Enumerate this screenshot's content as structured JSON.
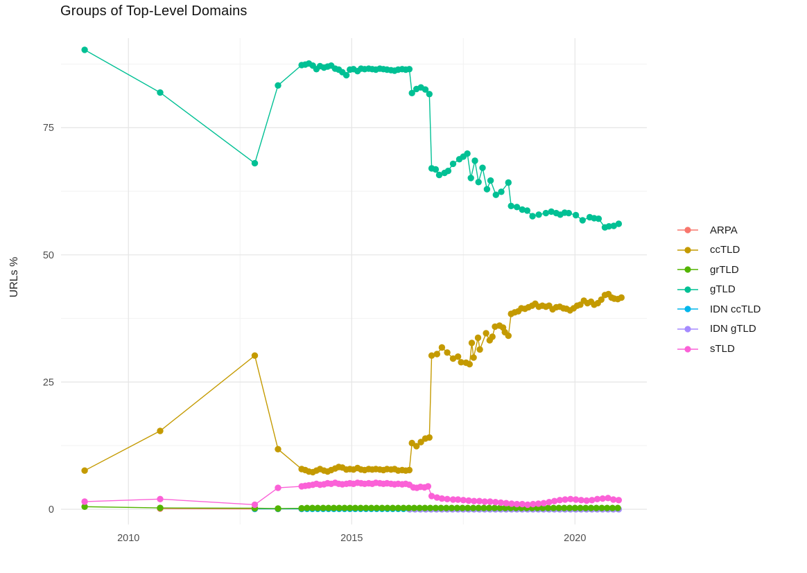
{
  "chart_data": {
    "type": "line",
    "title": "Groups of Top-Level Domains",
    "ylabel": "URLs %",
    "xlabel": "",
    "grid": "major+minor",
    "legend_position": "right",
    "x_range": [
      2008.49,
      2021.61
    ],
    "y_range": [
      -3.0,
      92.6
    ],
    "x_ticks": {
      "values": [
        2010,
        2015,
        2020
      ],
      "labels": [
        "2010",
        "2015",
        "2020"
      ]
    },
    "x_minor": [
      2012.5,
      2017.5
    ],
    "y_ticks": {
      "values": [
        0,
        25,
        50,
        75
      ],
      "labels": [
        "0",
        "25",
        "50",
        "75"
      ]
    },
    "y_minor": [
      12.5,
      37.5,
      62.5,
      87.5
    ],
    "colors": {
      "grid_major": "#e5e5e5",
      "grid_minor": "#f2f2f2",
      "tick_label": "#4d4d4d",
      "title": "#111111"
    },
    "draw_order": [
      "ARPA",
      "IDN ccTLD",
      "IDN gTLD",
      "grTLD",
      "gTLD",
      "ccTLD",
      "sTLD"
    ],
    "series": [
      {
        "name": "ARPA",
        "color": "#F8766D",
        "points": [
          [
            2010.71,
            0.12
          ],
          [
            2012.83,
            0.07
          ],
          [
            2013.35,
            0.06
          ],
          [
            2013.88,
            0.06
          ]
        ]
      },
      {
        "name": "ccTLD",
        "color": "#C49A00",
        "points": [
          [
            2009.02,
            7.6
          ],
          [
            2010.71,
            15.4
          ],
          [
            2012.83,
            30.2
          ],
          [
            2013.35,
            11.8
          ],
          [
            2013.88,
            7.9
          ],
          [
            2013.96,
            7.7
          ],
          [
            2014.04,
            7.4
          ],
          [
            2014.13,
            7.3
          ],
          [
            2014.21,
            7.6
          ],
          [
            2014.29,
            7.9
          ],
          [
            2014.38,
            7.6
          ],
          [
            2014.46,
            7.4
          ],
          [
            2014.54,
            7.7
          ],
          [
            2014.63,
            8.0
          ],
          [
            2014.71,
            8.3
          ],
          [
            2014.79,
            8.2
          ],
          [
            2014.88,
            7.8
          ],
          [
            2014.96,
            7.9
          ],
          [
            2015.04,
            7.8
          ],
          [
            2015.13,
            8.1
          ],
          [
            2015.21,
            7.8
          ],
          [
            2015.29,
            7.7
          ],
          [
            2015.38,
            7.9
          ],
          [
            2015.46,
            7.8
          ],
          [
            2015.54,
            7.9
          ],
          [
            2015.63,
            7.8
          ],
          [
            2015.71,
            7.7
          ],
          [
            2015.79,
            7.9
          ],
          [
            2015.88,
            7.8
          ],
          [
            2015.96,
            7.9
          ],
          [
            2016.04,
            7.6
          ],
          [
            2016.13,
            7.7
          ],
          [
            2016.21,
            7.6
          ],
          [
            2016.29,
            7.7
          ],
          [
            2016.35,
            13.0
          ],
          [
            2016.45,
            12.4
          ],
          [
            2016.55,
            13.2
          ],
          [
            2016.65,
            13.9
          ],
          [
            2016.74,
            14.1
          ],
          [
            2016.79,
            30.2
          ],
          [
            2016.91,
            30.5
          ],
          [
            2017.02,
            31.8
          ],
          [
            2017.14,
            30.8
          ],
          [
            2017.27,
            29.6
          ],
          [
            2017.38,
            30.0
          ],
          [
            2017.45,
            28.9
          ],
          [
            2017.56,
            28.8
          ],
          [
            2017.64,
            28.5
          ],
          [
            2017.69,
            32.7
          ],
          [
            2017.73,
            29.8
          ],
          [
            2017.83,
            33.7
          ],
          [
            2017.87,
            31.4
          ],
          [
            2018.01,
            34.6
          ],
          [
            2018.09,
            33.2
          ],
          [
            2018.15,
            33.9
          ],
          [
            2018.21,
            35.9
          ],
          [
            2018.31,
            36.1
          ],
          [
            2018.39,
            35.7
          ],
          [
            2018.43,
            34.8
          ],
          [
            2018.51,
            34.1
          ],
          [
            2018.57,
            38.4
          ],
          [
            2018.65,
            38.7
          ],
          [
            2018.73,
            38.9
          ],
          [
            2018.8,
            39.5
          ],
          [
            2018.88,
            39.4
          ],
          [
            2018.96,
            39.7
          ],
          [
            2019.04,
            40.0
          ],
          [
            2019.11,
            40.4
          ],
          [
            2019.19,
            39.8
          ],
          [
            2019.27,
            40.0
          ],
          [
            2019.35,
            39.8
          ],
          [
            2019.42,
            40.0
          ],
          [
            2019.5,
            39.3
          ],
          [
            2019.58,
            39.7
          ],
          [
            2019.66,
            39.8
          ],
          [
            2019.74,
            39.5
          ],
          [
            2019.81,
            39.4
          ],
          [
            2019.89,
            39.1
          ],
          [
            2019.97,
            39.5
          ],
          [
            2020.05,
            40.0
          ],
          [
            2020.12,
            40.2
          ],
          [
            2020.2,
            41.0
          ],
          [
            2020.28,
            40.5
          ],
          [
            2020.36,
            40.8
          ],
          [
            2020.43,
            40.2
          ],
          [
            2020.51,
            40.5
          ],
          [
            2020.59,
            41.2
          ],
          [
            2020.67,
            42.1
          ],
          [
            2020.75,
            42.3
          ],
          [
            2020.82,
            41.6
          ],
          [
            2020.88,
            41.4
          ],
          [
            2020.96,
            41.3
          ],
          [
            2021.04,
            41.6
          ]
        ]
      },
      {
        "name": "grTLD",
        "color": "#53B400",
        "points": [
          [
            2009.02,
            0.5
          ],
          [
            2010.71,
            0.25
          ],
          [
            2012.83,
            0.2
          ],
          [
            2013.35,
            0.15
          ],
          [
            2013.88,
            0.18
          ]
        ],
        "flat": {
          "x_start": 2014.0,
          "x_end": 2020.98,
          "x_step": 0.12,
          "y": 0.24
        }
      },
      {
        "name": "gTLD",
        "color": "#00C094",
        "points": [
          [
            2009.02,
            90.3
          ],
          [
            2010.71,
            81.9
          ],
          [
            2012.83,
            68.0
          ],
          [
            2013.35,
            83.3
          ],
          [
            2013.88,
            87.3
          ],
          [
            2013.96,
            87.4
          ],
          [
            2014.04,
            87.6
          ],
          [
            2014.13,
            87.2
          ],
          [
            2014.21,
            86.5
          ],
          [
            2014.29,
            87.1
          ],
          [
            2014.38,
            86.8
          ],
          [
            2014.46,
            87.0
          ],
          [
            2014.54,
            87.2
          ],
          [
            2014.63,
            86.6
          ],
          [
            2014.71,
            86.4
          ],
          [
            2014.79,
            85.9
          ],
          [
            2014.88,
            85.3
          ],
          [
            2014.96,
            86.4
          ],
          [
            2015.04,
            86.5
          ],
          [
            2015.13,
            86.1
          ],
          [
            2015.21,
            86.6
          ],
          [
            2015.29,
            86.5
          ],
          [
            2015.38,
            86.6
          ],
          [
            2015.46,
            86.5
          ],
          [
            2015.54,
            86.4
          ],
          [
            2015.63,
            86.6
          ],
          [
            2015.71,
            86.5
          ],
          [
            2015.79,
            86.4
          ],
          [
            2015.88,
            86.3
          ],
          [
            2015.96,
            86.2
          ],
          [
            2016.04,
            86.4
          ],
          [
            2016.13,
            86.5
          ],
          [
            2016.21,
            86.4
          ],
          [
            2016.29,
            86.5
          ],
          [
            2016.35,
            81.8
          ],
          [
            2016.45,
            82.6
          ],
          [
            2016.55,
            82.9
          ],
          [
            2016.65,
            82.5
          ],
          [
            2016.74,
            81.6
          ],
          [
            2016.79,
            67.0
          ],
          [
            2016.88,
            66.8
          ],
          [
            2016.96,
            65.7
          ],
          [
            2017.08,
            66.1
          ],
          [
            2017.16,
            66.5
          ],
          [
            2017.27,
            67.9
          ],
          [
            2017.41,
            68.8
          ],
          [
            2017.5,
            69.3
          ],
          [
            2017.59,
            69.9
          ],
          [
            2017.67,
            65.1
          ],
          [
            2017.76,
            68.5
          ],
          [
            2017.84,
            64.3
          ],
          [
            2017.93,
            67.1
          ],
          [
            2018.03,
            62.9
          ],
          [
            2018.11,
            64.6
          ],
          [
            2018.23,
            61.8
          ],
          [
            2018.35,
            62.4
          ],
          [
            2018.51,
            64.2
          ],
          [
            2018.57,
            59.6
          ],
          [
            2018.7,
            59.4
          ],
          [
            2018.82,
            58.9
          ],
          [
            2018.93,
            58.7
          ],
          [
            2019.05,
            57.6
          ],
          [
            2019.19,
            57.9
          ],
          [
            2019.35,
            58.2
          ],
          [
            2019.47,
            58.5
          ],
          [
            2019.58,
            58.2
          ],
          [
            2019.67,
            57.9
          ],
          [
            2019.77,
            58.3
          ],
          [
            2019.86,
            58.2
          ],
          [
            2020.02,
            57.8
          ],
          [
            2020.17,
            56.8
          ],
          [
            2020.33,
            57.4
          ],
          [
            2020.43,
            57.2
          ],
          [
            2020.53,
            57.1
          ],
          [
            2020.67,
            55.4
          ],
          [
            2020.76,
            55.6
          ],
          [
            2020.87,
            55.7
          ],
          [
            2020.98,
            56.1
          ]
        ]
      },
      {
        "name": "IDN ccTLD",
        "color": "#00B6EB",
        "points": [
          [
            2012.83,
            0.08
          ],
          [
            2013.35,
            0.08
          ],
          [
            2013.88,
            0.08
          ]
        ],
        "flat": {
          "x_start": 2014.0,
          "x_end": 2020.98,
          "x_step": 0.12,
          "y": 0.08
        }
      },
      {
        "name": "IDN gTLD",
        "color": "#A58AFF",
        "points": [],
        "flat": {
          "x_start": 2016.3,
          "x_end": 2020.98,
          "x_step": 0.12,
          "y": 0.0
        }
      },
      {
        "name": "sTLD",
        "color": "#FB61D7",
        "points": [
          [
            2009.02,
            1.5
          ],
          [
            2010.71,
            2.0
          ],
          [
            2012.83,
            0.9
          ],
          [
            2013.35,
            4.2
          ],
          [
            2013.88,
            4.5
          ],
          [
            2013.96,
            4.6
          ],
          [
            2014.04,
            4.7
          ],
          [
            2014.13,
            4.8
          ],
          [
            2014.21,
            5.0
          ],
          [
            2014.29,
            4.8
          ],
          [
            2014.38,
            4.9
          ],
          [
            2014.46,
            5.1
          ],
          [
            2014.54,
            5.0
          ],
          [
            2014.63,
            5.2
          ],
          [
            2014.71,
            5.0
          ],
          [
            2014.79,
            4.9
          ],
          [
            2014.88,
            5.0
          ],
          [
            2014.96,
            5.1
          ],
          [
            2015.04,
            5.0
          ],
          [
            2015.13,
            5.2
          ],
          [
            2015.21,
            5.1
          ],
          [
            2015.29,
            5.0
          ],
          [
            2015.38,
            5.1
          ],
          [
            2015.46,
            5.0
          ],
          [
            2015.54,
            5.2
          ],
          [
            2015.63,
            5.1
          ],
          [
            2015.71,
            5.0
          ],
          [
            2015.79,
            5.1
          ],
          [
            2015.88,
            5.0
          ],
          [
            2015.96,
            4.9
          ],
          [
            2016.04,
            5.0
          ],
          [
            2016.13,
            4.9
          ],
          [
            2016.21,
            5.0
          ],
          [
            2016.29,
            4.8
          ],
          [
            2016.38,
            4.3
          ],
          [
            2016.46,
            4.2
          ],
          [
            2016.54,
            4.4
          ],
          [
            2016.63,
            4.3
          ],
          [
            2016.71,
            4.5
          ],
          [
            2016.79,
            2.6
          ],
          [
            2016.91,
            2.3
          ],
          [
            2017.02,
            2.1
          ],
          [
            2017.14,
            2.0
          ],
          [
            2017.27,
            1.9
          ],
          [
            2017.38,
            1.9
          ],
          [
            2017.5,
            1.8
          ],
          [
            2017.62,
            1.7
          ],
          [
            2017.74,
            1.6
          ],
          [
            2017.86,
            1.6
          ],
          [
            2017.98,
            1.5
          ],
          [
            2018.1,
            1.5
          ],
          [
            2018.22,
            1.4
          ],
          [
            2018.34,
            1.3
          ],
          [
            2018.46,
            1.2
          ],
          [
            2018.58,
            1.1
          ],
          [
            2018.7,
            1.0
          ],
          [
            2018.82,
            1.0
          ],
          [
            2018.94,
            0.9
          ],
          [
            2019.06,
            1.0
          ],
          [
            2019.18,
            1.1
          ],
          [
            2019.3,
            1.2
          ],
          [
            2019.42,
            1.4
          ],
          [
            2019.54,
            1.6
          ],
          [
            2019.66,
            1.8
          ],
          [
            2019.78,
            1.9
          ],
          [
            2019.9,
            2.0
          ],
          [
            2020.02,
            1.9
          ],
          [
            2020.14,
            1.8
          ],
          [
            2020.26,
            1.7
          ],
          [
            2020.38,
            1.8
          ],
          [
            2020.5,
            2.0
          ],
          [
            2020.62,
            2.1
          ],
          [
            2020.74,
            2.2
          ],
          [
            2020.86,
            1.9
          ],
          [
            2020.98,
            1.8
          ]
        ]
      }
    ]
  }
}
